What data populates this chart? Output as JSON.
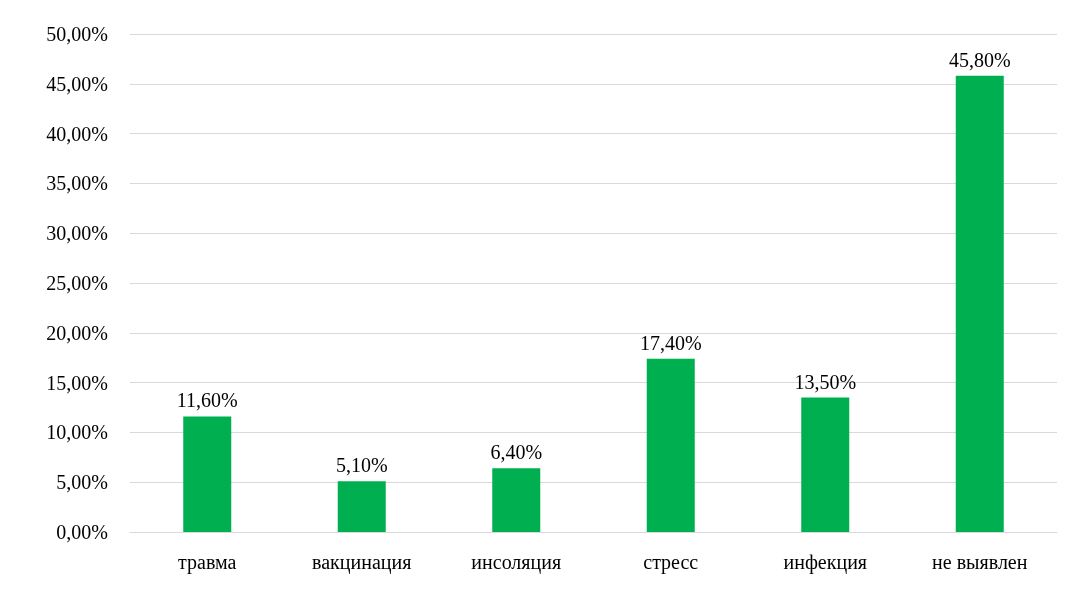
{
  "chart_data": {
    "type": "bar",
    "categories": [
      "травма",
      "вакцинация",
      "инсоляция",
      "стресс",
      "инфекция",
      "не выявлен"
    ],
    "values": [
      11.6,
      5.1,
      6.4,
      17.4,
      13.5,
      45.8
    ],
    "value_labels": [
      "11,60%",
      "5,10%",
      "6,40%",
      "17,40%",
      "13,50%",
      "45,80%"
    ],
    "color": "#00b050",
    "ylim": [
      0,
      50
    ],
    "yticks": [
      {
        "value": 0,
        "label": "0,00%"
      },
      {
        "value": 5,
        "label": "5,00%"
      },
      {
        "value": 10,
        "label": "10,00%"
      },
      {
        "value": 15,
        "label": "15,00%"
      },
      {
        "value": 20,
        "label": "20,00%"
      },
      {
        "value": 25,
        "label": "25,00%"
      },
      {
        "value": 30,
        "label": "30,00%"
      },
      {
        "value": 35,
        "label": "35,00%"
      },
      {
        "value": 40,
        "label": "40,00%"
      },
      {
        "value": 45,
        "label": "45,00%"
      },
      {
        "value": 50,
        "label": "50,00%"
      }
    ],
    "grid": "y"
  }
}
